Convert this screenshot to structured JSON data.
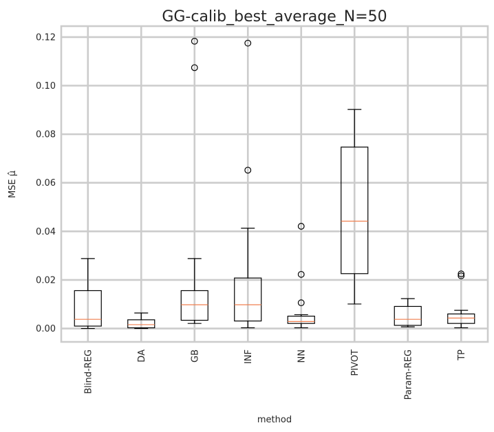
{
  "chart_data": {
    "type": "box",
    "title": "GG-calib_best_average_N=50",
    "xlabel": "method",
    "ylabel": "MSE μ̂",
    "ylim": [
      -0.0055,
      0.1245
    ],
    "yticks": [
      "0.00",
      "0.02",
      "0.04",
      "0.06",
      "0.08",
      "0.10",
      "0.12"
    ],
    "grid": true,
    "categories": [
      "Blind-REG",
      "DA",
      "GB",
      "INF",
      "NN",
      "PIVOT",
      "Param-REG",
      "TP"
    ],
    "boxes": [
      {
        "whislo": 0.0,
        "q1": 0.001,
        "med": 0.0038,
        "q3": 0.0156,
        "whishi": 0.0288,
        "fliers": []
      },
      {
        "whislo": 0.0,
        "q1": 0.0003,
        "med": 0.0016,
        "q3": 0.0036,
        "whishi": 0.0064,
        "fliers": []
      },
      {
        "whislo": 0.0021,
        "q1": 0.0034,
        "med": 0.0098,
        "q3": 0.0156,
        "whishi": 0.0288,
        "fliers": [
          0.1074,
          0.1183
        ]
      },
      {
        "whislo": 0.0003,
        "q1": 0.0031,
        "med": 0.0098,
        "q3": 0.0208,
        "whishi": 0.0413,
        "fliers": [
          0.0652,
          0.1175
        ]
      },
      {
        "whislo": 0.0003,
        "q1": 0.0021,
        "med": 0.0029,
        "q3": 0.0051,
        "whishi": 0.0057,
        "fliers": [
          0.0106,
          0.0223,
          0.0421
        ]
      },
      {
        "whislo": 0.0101,
        "q1": 0.0226,
        "med": 0.0442,
        "q3": 0.0747,
        "whishi": 0.0902,
        "fliers": []
      },
      {
        "whislo": 0.0007,
        "q1": 0.0013,
        "med": 0.0038,
        "q3": 0.0091,
        "whishi": 0.0123,
        "fliers": []
      },
      {
        "whislo": 0.0003,
        "q1": 0.0021,
        "med": 0.0043,
        "q3": 0.006,
        "whishi": 0.0075,
        "fliers": [
          0.0217,
          0.0225
        ]
      }
    ],
    "colors": {
      "box": "#000000",
      "median": "#f07f4f",
      "grid": "#cccccc",
      "text": "#262626"
    }
  }
}
